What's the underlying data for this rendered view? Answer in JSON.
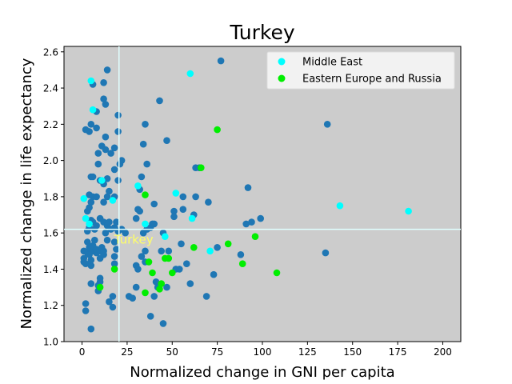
{
  "chart_data": {
    "type": "scatter",
    "title": "Turkey",
    "xlabel": "Normalized change in GNI per capita",
    "ylabel": "Normalized change in life expectancy",
    "xlim": [
      -10,
      210
    ],
    "ylim": [
      1.0,
      2.63
    ],
    "xticks": [
      "0",
      "25",
      "50",
      "75",
      "100",
      "125",
      "150",
      "175",
      "200"
    ],
    "yticks": [
      "1.0",
      "1.2",
      "1.4",
      "1.6",
      "1.8",
      "2.0",
      "2.2",
      "2.4",
      "2.6"
    ],
    "background": "#cccccc",
    "grid": false,
    "legend_position": "top-right",
    "highlight": {
      "label": "Turkey",
      "x": 20.5,
      "y": 1.62,
      "line_color": "#e0ffff",
      "label_color": "#ffff66"
    },
    "series": [
      {
        "name": "",
        "color": "#1f77b4",
        "points": [
          [
            2,
            1.21
          ],
          [
            2,
            1.17
          ],
          [
            1,
            1.44
          ],
          [
            1,
            1.46
          ],
          [
            1,
            1.5
          ],
          [
            2,
            1.43
          ],
          [
            3,
            1.49
          ],
          [
            4,
            1.48
          ],
          [
            4,
            1.52
          ],
          [
            3,
            1.55
          ],
          [
            5,
            1.07
          ],
          [
            5,
            1.32
          ],
          [
            5,
            1.42
          ],
          [
            5,
            1.45
          ],
          [
            6,
            1.5
          ],
          [
            6,
            1.53
          ],
          [
            7,
            1.56
          ],
          [
            8,
            1.49
          ],
          [
            8,
            1.51
          ],
          [
            9,
            1.28
          ],
          [
            9,
            1.31
          ],
          [
            10,
            1.33
          ],
          [
            10,
            1.35
          ],
          [
            10,
            1.46
          ],
          [
            10,
            1.5
          ],
          [
            11,
            1.52
          ],
          [
            12,
            1.48
          ],
          [
            12,
            1.5
          ],
          [
            13,
            1.6
          ],
          [
            14,
            1.56
          ],
          [
            15,
            1.22
          ],
          [
            17,
            1.19
          ],
          [
            17,
            1.25
          ],
          [
            18,
            1.43
          ],
          [
            18,
            1.47
          ],
          [
            19,
            1.51
          ],
          [
            18,
            1.55
          ],
          [
            3,
            1.61
          ],
          [
            4,
            1.63
          ],
          [
            5,
            1.67
          ],
          [
            6,
            1.66
          ],
          [
            7,
            1.62
          ],
          [
            8,
            1.64
          ],
          [
            10,
            1.68
          ],
          [
            12,
            1.66
          ],
          [
            14,
            1.64
          ],
          [
            15,
            1.66
          ],
          [
            16,
            1.62
          ],
          [
            18,
            1.63
          ],
          [
            19,
            1.66
          ],
          [
            20,
            1.61
          ],
          [
            22,
            1.62
          ],
          [
            24,
            1.6
          ],
          [
            3,
            1.72
          ],
          [
            4,
            1.74
          ],
          [
            5,
            1.77
          ],
          [
            6,
            1.8
          ],
          [
            8,
            1.8
          ],
          [
            12,
            1.77
          ],
          [
            14,
            1.8
          ],
          [
            15,
            1.83
          ],
          [
            18,
            1.8
          ],
          [
            4,
            1.81
          ],
          [
            5,
            1.91
          ],
          [
            6,
            1.91
          ],
          [
            9,
            1.98
          ],
          [
            10,
            1.89
          ],
          [
            12,
            1.87
          ],
          [
            14,
            1.9
          ],
          [
            18,
            1.95
          ],
          [
            20,
            1.89
          ],
          [
            21,
            1.98
          ],
          [
            22,
            2.0
          ],
          [
            9,
            2.04
          ],
          [
            11,
            2.08
          ],
          [
            13,
            2.06
          ],
          [
            16,
            2.04
          ],
          [
            18,
            2.07
          ],
          [
            2,
            2.17
          ],
          [
            4,
            2.16
          ],
          [
            5,
            2.2
          ],
          [
            8,
            2.18
          ],
          [
            13,
            2.13
          ],
          [
            20,
            2.16
          ],
          [
            20,
            2.25
          ],
          [
            6,
            2.42
          ],
          [
            8,
            2.27
          ],
          [
            12,
            2.34
          ],
          [
            13,
            2.31
          ],
          [
            12,
            2.43
          ],
          [
            14,
            2.5
          ],
          [
            26,
            1.25
          ],
          [
            28,
            1.24
          ],
          [
            30,
            1.42
          ],
          [
            31,
            1.4
          ],
          [
            30,
            1.3
          ],
          [
            33,
            1.47
          ],
          [
            35,
            1.44
          ],
          [
            35,
            1.5
          ],
          [
            30,
            1.68
          ],
          [
            31,
            1.73
          ],
          [
            32,
            1.72
          ],
          [
            34,
            1.6
          ],
          [
            36,
            1.62
          ],
          [
            38,
            1.63
          ],
          [
            39,
            1.65
          ],
          [
            40,
            1.65
          ],
          [
            32,
            1.84
          ],
          [
            33,
            1.91
          ],
          [
            34,
            2.09
          ],
          [
            35,
            2.2
          ],
          [
            36,
            1.98
          ],
          [
            40,
            1.76
          ],
          [
            38,
            1.14
          ],
          [
            40,
            1.25
          ],
          [
            41,
            1.33
          ],
          [
            42,
            1.3
          ],
          [
            44,
            1.5
          ],
          [
            45,
            1.1
          ],
          [
            45,
            1.6
          ],
          [
            47,
            1.3
          ],
          [
            48,
            1.5
          ],
          [
            51,
            1.72
          ],
          [
            51,
            1.69
          ],
          [
            52,
            1.4
          ],
          [
            54,
            1.4
          ],
          [
            56,
            1.8
          ],
          [
            56,
            1.73
          ],
          [
            55,
            1.54
          ],
          [
            58,
            1.43
          ],
          [
            60,
            1.32
          ],
          [
            62,
            1.7
          ],
          [
            63,
            1.96
          ],
          [
            63,
            1.8
          ],
          [
            65,
            1.96
          ],
          [
            69,
            1.25
          ],
          [
            70,
            1.77
          ],
          [
            73,
            1.37
          ],
          [
            75,
            1.52
          ],
          [
            77,
            2.55
          ],
          [
            43,
            2.33
          ],
          [
            47,
            2.11
          ],
          [
            88,
            1.48
          ],
          [
            91,
            1.65
          ],
          [
            92,
            1.85
          ],
          [
            94,
            1.66
          ],
          [
            99,
            1.68
          ],
          [
            136,
            2.2
          ],
          [
            135,
            1.49
          ]
        ]
      },
      {
        "name": "Middle East",
        "color": "#00ffff",
        "points": [
          [
            1,
            1.79
          ],
          [
            2,
            1.68
          ],
          [
            4,
            1.65
          ],
          [
            5,
            2.44
          ],
          [
            6,
            2.28
          ],
          [
            11,
            1.89
          ],
          [
            17,
            1.78
          ],
          [
            31,
            1.86
          ],
          [
            35,
            1.65
          ],
          [
            46,
            1.58
          ],
          [
            52,
            1.82
          ],
          [
            61,
            1.68
          ],
          [
            60,
            2.48
          ],
          [
            71,
            1.5
          ],
          [
            143,
            1.75
          ],
          [
            181,
            1.72
          ]
        ]
      },
      {
        "name": "Eastern Europe and Russia",
        "color": "#00ee00",
        "points": [
          [
            10,
            1.3
          ],
          [
            18,
            1.4
          ],
          [
            35,
            1.81
          ],
          [
            35,
            1.27
          ],
          [
            37,
            1.44
          ],
          [
            39,
            1.38
          ],
          [
            43,
            1.29
          ],
          [
            44,
            1.32
          ],
          [
            46,
            1.46
          ],
          [
            48,
            1.46
          ],
          [
            50,
            1.38
          ],
          [
            62,
            1.52
          ],
          [
            66,
            1.96
          ],
          [
            75,
            2.17
          ],
          [
            81,
            1.54
          ],
          [
            89,
            1.43
          ],
          [
            96,
            1.58
          ],
          [
            108,
            1.38
          ]
        ]
      }
    ]
  }
}
